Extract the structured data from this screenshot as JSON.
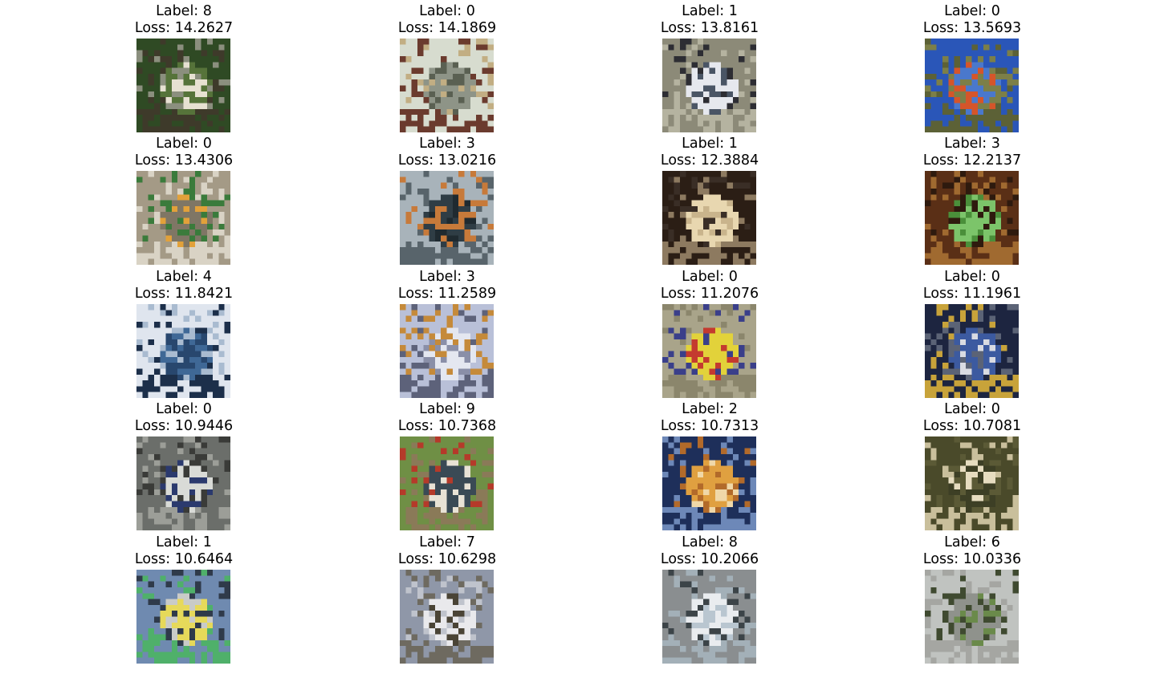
{
  "grid": {
    "cells": [
      {
        "label": "Label: 8",
        "loss": "Loss: 14.2627",
        "thumb": "sailboat-on-river",
        "colors": [
          "#2f4a24",
          "#56733a",
          "#e7e1d2",
          "#8b8f7e",
          "#3e3a2a"
        ]
      },
      {
        "label": "Label: 0",
        "loss": "Loss: 14.1869",
        "thumb": "fighter-jet",
        "colors": [
          "#d7dccf",
          "#8e9487",
          "#5a6052",
          "#c2ae83",
          "#6b3b2e"
        ]
      },
      {
        "label": "Label: 1",
        "loss": "Loss: 13.8161",
        "thumb": "white-van",
        "colors": [
          "#8c8a78",
          "#e6e8ee",
          "#4a5565",
          "#2d2d33",
          "#b5b3a0"
        ]
      },
      {
        "label": "Label: 0",
        "loss": "Loss: 13.5693",
        "thumb": "biplane-on-grass",
        "colors": [
          "#2a56b8",
          "#4a78cc",
          "#d5552a",
          "#7c7f48",
          "#5c6136"
        ]
      },
      {
        "label": "Label: 0",
        "loss": "Loss: 13.4306",
        "thumb": "airliner-tail",
        "colors": [
          "#a49a86",
          "#7f7665",
          "#e2a13a",
          "#3a7b3b",
          "#d9d3c5"
        ]
      },
      {
        "label": "Label: 3",
        "loss": "Loss: 13.0216",
        "thumb": "dark-cat",
        "colors": [
          "#a8b3ba",
          "#2f3d45",
          "#1f2a30",
          "#c77a3a",
          "#58646b"
        ]
      },
      {
        "label": "Label: 1",
        "loss": "Loss: 12.3884",
        "thumb": "cream-car",
        "colors": [
          "#2b1e15",
          "#e8d7b0",
          "#c9b48c",
          "#3a2e26",
          "#8d7a60"
        ]
      },
      {
        "label": "Label: 3",
        "loss": "Loss: 12.2137",
        "thumb": "green-frog",
        "colors": [
          "#5a2f16",
          "#7cc46a",
          "#4a8f3a",
          "#2e1a0e",
          "#a06a30"
        ]
      },
      {
        "label": "Label: 4",
        "loss": "Loss: 11.8421",
        "thumb": "deer-in-snow",
        "colors": [
          "#dfe5ee",
          "#28476e",
          "#3f6896",
          "#a9bbd0",
          "#1c2f4a"
        ]
      },
      {
        "label": "Label: 3",
        "loss": "Loss: 11.2589",
        "thumb": "persian-cat",
        "colors": [
          "#b9c0d8",
          "#e4e7f0",
          "#8a8fa8",
          "#c58a3a",
          "#5d627a"
        ]
      },
      {
        "label": "Label: 0",
        "loss": "Loss: 11.2076",
        "thumb": "yellow-airplane",
        "colors": [
          "#a9a48a",
          "#e2d23a",
          "#c43a2f",
          "#3a3f8a",
          "#8b866c"
        ]
      },
      {
        "label": "Label: 0",
        "loss": "Loss: 11.1961",
        "thumb": "striped-airplane",
        "colors": [
          "#1d2540",
          "#3c5aa0",
          "#d9dbe2",
          "#5b6376",
          "#c8a33a"
        ]
      },
      {
        "label": "Label: 0",
        "loss": "Loss: 10.9446",
        "thumb": "airliner-front",
        "colors": [
          "#6b6e6a",
          "#d9dbd7",
          "#2b3a6e",
          "#3a3b38",
          "#9c9e98"
        ]
      },
      {
        "label": "Label: 9",
        "loss": "Loss: 10.7368",
        "thumb": "truck-on-road",
        "colors": [
          "#6f8f45",
          "#3a4a55",
          "#e8e2d5",
          "#b53a2a",
          "#8a7a58"
        ]
      },
      {
        "label": "Label: 2",
        "loss": "Loss: 10.7313",
        "thumb": "bird-orange",
        "colors": [
          "#1e2f5a",
          "#e0a040",
          "#f0d8a8",
          "#b26a2a",
          "#6d88b8"
        ]
      },
      {
        "label": "Label: 0",
        "loss": "Loss: 10.7081",
        "thumb": "stealth-bomber",
        "colors": [
          "#4a4a2a",
          "#3d3f25",
          "#e6dcc0",
          "#5b5a36",
          "#c9bf9c"
        ]
      },
      {
        "label": "Label: 1",
        "loss": "Loss: 10.6464",
        "thumb": "yellow-taxi",
        "colors": [
          "#6f8ab0",
          "#e6d95a",
          "#c9cbc8",
          "#2f3a4a",
          "#4fb06a"
        ]
      },
      {
        "label": "Label: 7",
        "loss": "Loss: 10.6298",
        "thumb": "white-horse",
        "colors": [
          "#8f97a8",
          "#e9e9ec",
          "#4a4436",
          "#bfc3cc",
          "#6e6a60"
        ]
      },
      {
        "label": "Label: 8",
        "loss": "Loss: 10.2066",
        "thumb": "sailboat-white",
        "colors": [
          "#8a8e90",
          "#e9ecef",
          "#b9c6d0",
          "#3c4448",
          "#a3b0b8"
        ]
      },
      {
        "label": "Label: 6",
        "loss": "Loss: 10.0336",
        "thumb": "frog-on-rock",
        "colors": [
          "#c0c3c0",
          "#8f928c",
          "#6a8a4a",
          "#3f4a30",
          "#a5a6a2"
        ]
      }
    ]
  }
}
